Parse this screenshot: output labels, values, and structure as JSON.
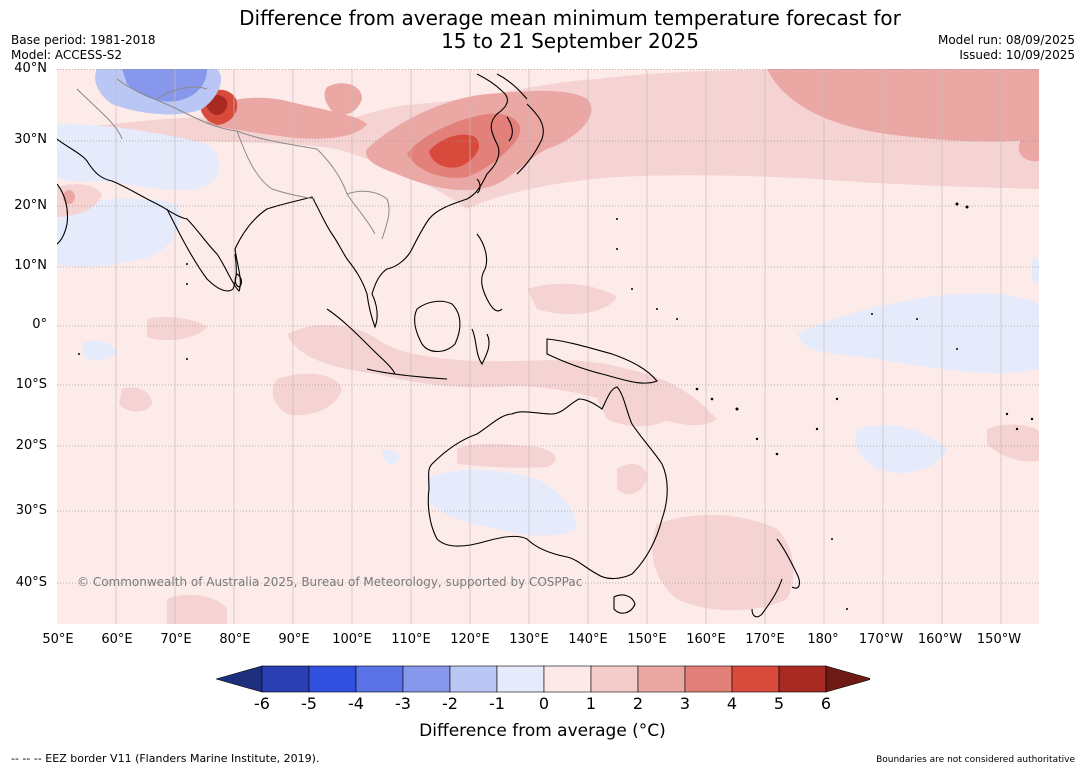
{
  "title": {
    "line1": "Difference from average mean minimum temperature forecast for",
    "line2": "15 to 21 September 2025"
  },
  "meta": {
    "base_period": "Base period: 1981-2018",
    "model": "Model: ACCESS-S2",
    "model_run": "Model run: 08/09/2025",
    "issued": "Issued: 10/09/2025"
  },
  "map": {
    "lat_labels": [
      "40°N",
      "30°N",
      "20°N",
      "10°N",
      "0°",
      "10°S",
      "20°S",
      "30°S",
      "40°S"
    ],
    "lon_labels": [
      "50°E",
      "60°E",
      "70°E",
      "80°E",
      "90°E",
      "100°E",
      "110°E",
      "120°E",
      "130°E",
      "140°E",
      "150°E",
      "160°E",
      "170°E",
      "180°",
      "170°W",
      "160°W",
      "150°W"
    ],
    "copyright": "© Commonwealth of Australia 2025, Bureau of Meteorology, supported by COSPPac",
    "regions": [
      {
        "name": "warm-east-china",
        "level": 4
      },
      {
        "name": "warm-north-pacific",
        "level": 2
      },
      {
        "name": "warm-himalaya",
        "level": 5
      },
      {
        "name": "cool-central-asia",
        "level": -2
      },
      {
        "name": "cool-equatorial-pacific",
        "level": -1
      },
      {
        "name": "cool-western-australia",
        "level": -1
      }
    ]
  },
  "colorbar": {
    "ticks": [
      "-6",
      "-5",
      "-4",
      "-3",
      "-2",
      "-1",
      "0",
      "1",
      "2",
      "3",
      "4",
      "5",
      "6"
    ],
    "colors": [
      "#1f2f7f",
      "#2a3fb3",
      "#3150e0",
      "#5a72e6",
      "#8797ec",
      "#bac6f3",
      "#e6ebfb",
      "#fde9e8",
      "#f4cccc",
      "#eaa7a3",
      "#e38079",
      "#d84a3c",
      "#a82a22",
      "#701a15"
    ],
    "label": "Difference from average (°C)"
  },
  "footer": {
    "left": "--  --  -- EEZ border V11 (Flanders Marine Institute, 2019).",
    "right": "Boundaries are not considered authoritative"
  }
}
